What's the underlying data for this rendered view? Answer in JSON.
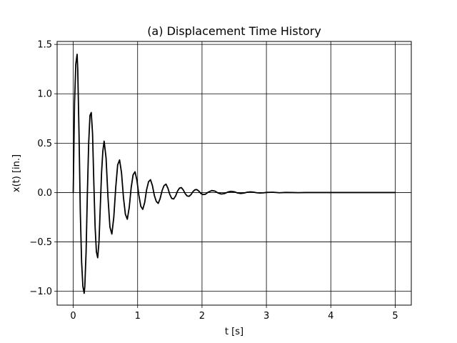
{
  "chart_data": {
    "type": "line",
    "title": "(a) Displacement Time History",
    "xlabel": "t [s]",
    "ylabel": "x(t) [in.]",
    "xlim": [
      -0.25,
      5.25
    ],
    "ylim": [
      -1.14,
      1.53
    ],
    "xticks": [
      0,
      1,
      2,
      3,
      4,
      5
    ],
    "xtick_labels": [
      "0",
      "1",
      "2",
      "3",
      "4",
      "5"
    ],
    "yticks": [
      -1.0,
      -0.5,
      0.0,
      0.5,
      1.0,
      1.5
    ],
    "ytick_labels": [
      "−1.0",
      "−0.5",
      "0.0",
      "0.5",
      "1.0",
      "1.5"
    ],
    "grid": true,
    "series": [
      {
        "color": "#000000",
        "x": [
          0.0,
          0.02,
          0.04,
          0.06,
          0.07,
          0.09,
          0.11,
          0.13,
          0.15,
          0.17,
          0.18,
          0.2,
          0.22,
          0.24,
          0.26,
          0.28,
          0.3,
          0.32,
          0.34,
          0.36,
          0.38,
          0.4,
          0.42,
          0.44,
          0.46,
          0.48,
          0.51,
          0.54,
          0.57,
          0.6,
          0.63,
          0.66,
          0.69,
          0.72,
          0.75,
          0.78,
          0.81,
          0.84,
          0.87,
          0.9,
          0.93,
          0.96,
          0.99,
          1.02,
          1.05,
          1.08,
          1.11,
          1.14,
          1.17,
          1.2,
          1.23,
          1.26,
          1.29,
          1.32,
          1.35,
          1.38,
          1.41,
          1.44,
          1.47,
          1.5,
          1.53,
          1.56,
          1.59,
          1.62,
          1.65,
          1.68,
          1.71,
          1.74,
          1.77,
          1.8,
          1.83,
          1.86,
          1.89,
          1.92,
          1.95,
          1.98,
          2.01,
          2.05,
          2.1,
          2.15,
          2.2,
          2.25,
          2.3,
          2.35,
          2.4,
          2.45,
          2.5,
          2.55,
          2.6,
          2.65,
          2.7,
          2.75,
          2.8,
          2.85,
          2.9,
          2.95,
          3.0,
          3.1,
          3.2,
          3.3,
          3.4,
          3.5,
          3.6,
          3.7,
          3.8,
          3.9,
          4.0,
          4.2,
          4.4,
          4.6,
          4.8,
          5.0
        ],
        "y": [
          0.0,
          0.9,
          1.3,
          1.4,
          1.25,
          0.6,
          -0.2,
          -0.7,
          -0.95,
          -1.02,
          -0.95,
          -0.6,
          0.0,
          0.5,
          0.78,
          0.81,
          0.6,
          0.1,
          -0.35,
          -0.6,
          -0.66,
          -0.5,
          -0.15,
          0.2,
          0.42,
          0.52,
          0.35,
          -0.05,
          -0.35,
          -0.42,
          -0.25,
          0.05,
          0.28,
          0.33,
          0.2,
          -0.05,
          -0.22,
          -0.27,
          -0.15,
          0.05,
          0.18,
          0.21,
          0.12,
          -0.03,
          -0.14,
          -0.17,
          -0.1,
          0.03,
          0.11,
          0.13,
          0.07,
          -0.03,
          -0.09,
          -0.11,
          -0.06,
          0.02,
          0.07,
          0.085,
          0.045,
          -0.02,
          -0.06,
          -0.065,
          -0.035,
          0.015,
          0.045,
          0.05,
          0.025,
          -0.012,
          -0.035,
          -0.038,
          -0.02,
          0.01,
          0.028,
          0.03,
          0.015,
          -0.008,
          -0.02,
          -0.018,
          0.005,
          0.02,
          0.015,
          -0.005,
          -0.015,
          -0.01,
          0.005,
          0.012,
          0.008,
          -0.004,
          -0.009,
          -0.006,
          0.003,
          0.007,
          0.004,
          -0.002,
          -0.005,
          -0.003,
          0.001,
          0.003,
          -0.002,
          0.001,
          0.0,
          -0.001,
          0.0,
          0.0,
          0.0,
          0.0,
          0.0,
          0.0,
          0.0,
          0.0,
          0.0,
          0.0
        ]
      }
    ]
  }
}
